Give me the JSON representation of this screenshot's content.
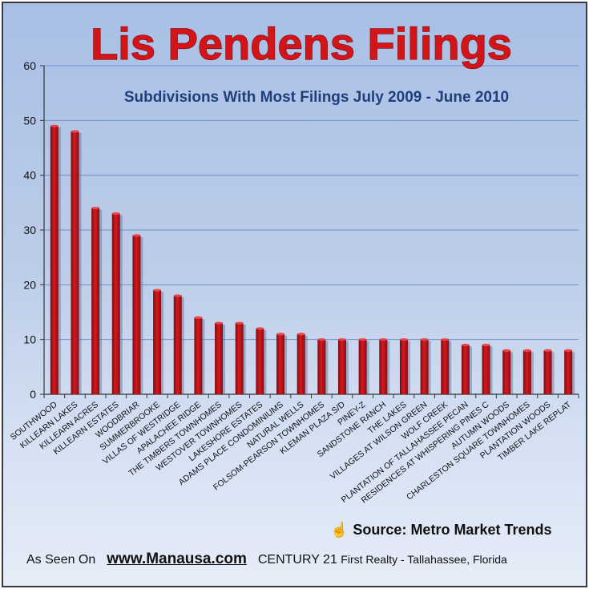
{
  "chart_data": {
    "type": "bar",
    "title": "Lis Pendens Filings",
    "subtitle": "Subdivisions With Most Filings July 2009 - June 2010",
    "ylim": [
      0,
      60
    ],
    "yticks": [
      0,
      10,
      20,
      30,
      40,
      50,
      60
    ],
    "grid": true,
    "legend": "none",
    "bar_color": "#c8141b",
    "title_color": "#d3151a",
    "subtitle_color": "#1f3f7a",
    "categories": [
      "SOUTHWOOD",
      "KILLEARN LAKES",
      "KILLEARN ACRES",
      "KILLEARN ESTATES",
      "WOODBRIAR",
      "SUMMERBROOKE",
      "VILLAS OF WESTRIDGE",
      "APALACHEE RIDGE",
      "THE TIMBERS TOWNHOMES",
      "WESTOVER TOWNHOMES",
      "LAKESHORE ESTATES",
      "ADAMS PLACE CONDOMINIUMS",
      "NATURAL WELLS",
      "FOLSOM-PEARSON TOWNHOMES",
      "KLEMAN PLAZA S/D",
      "PINEY-Z",
      "SANDSTONE RANCH",
      "THE LAKES",
      "VILLAGES AT WILSON GREEN",
      "WOLF CREEK",
      "PLANTATION OF TALLAHASSEE PECAN",
      "RESIDENCES AT WHISPERING PINES C",
      "AUTUMN WOODS",
      "CHARLESTON SQUARE TOWNHOMES",
      "PLANTATION WOODS",
      "TIMBER LAKE REPLAT"
    ],
    "values": [
      49,
      48,
      34,
      33,
      29,
      19,
      18,
      14,
      13,
      13,
      12,
      11,
      11,
      10,
      10,
      10,
      10,
      10,
      10,
      10,
      9,
      9,
      8,
      8,
      8,
      8
    ]
  },
  "footer": {
    "source_icon": "hand-pointer-icon",
    "source": "Source: Metro Market Trends",
    "as_seen_on": "As Seen On",
    "website": "www.Manausa.com",
    "brand": "CENTURY 21",
    "brand_detail": "First Realty - Tallahassee, Florida"
  }
}
